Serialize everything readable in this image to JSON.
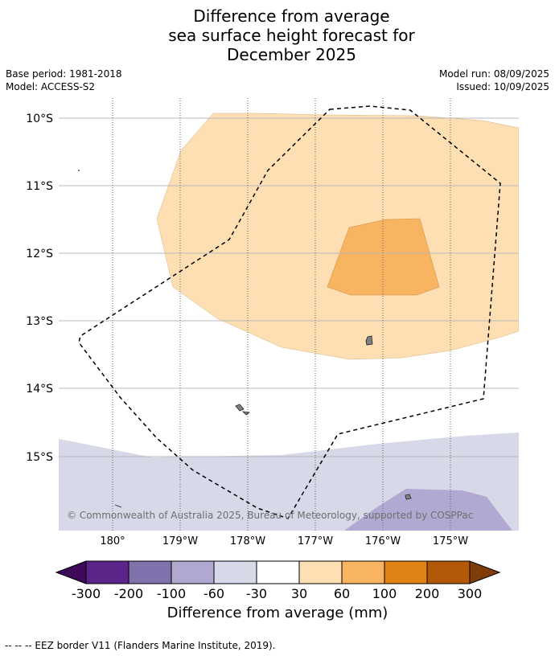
{
  "title": {
    "line1": "Difference from average",
    "line2": "sea surface height forecast for",
    "line3": "December 2025"
  },
  "meta": {
    "base_period": "Base period: 1981-2018",
    "model": "Model: ACCESS-S2",
    "model_run": "Model run: 08/09/2025",
    "issued": "Issued: 10/09/2025"
  },
  "map": {
    "latitude_labels": [
      "10°S",
      "11°S",
      "12°S",
      "13°S",
      "14°S",
      "15°S"
    ],
    "longitude_labels": [
      "180°",
      "179°W",
      "178°W",
      "177°W",
      "176°W",
      "175°W"
    ],
    "copyright": "© Commonwealth of Australia 2025, Bureau of Meteorology, supported by COSPPac",
    "colors": {
      "anomaly_30_60": "#fddfb3",
      "anomaly_60_100": "#f8b461",
      "anomaly_neg60_neg30": "#d7d8e8",
      "anomaly_neg100_neg60": "#b1a9d1",
      "eez_border": "#000000",
      "land": "#808080"
    }
  },
  "colorbar": {
    "tick_labels": [
      "-300",
      "-200",
      "-100",
      "-60",
      "-30",
      "30",
      "60",
      "100",
      "200",
      "300"
    ],
    "bin_colors": [
      "#3f0a59",
      "#5b2489",
      "#8071ad",
      "#b1a9d1",
      "#d7d8e8",
      "#ffffff",
      "#fddfb3",
      "#f8b461",
      "#e08214",
      "#b35806",
      "#7f3b08"
    ],
    "title": "Difference from average (mm)"
  },
  "footer": {
    "legend": "--  --  -- EEZ border V11 (Flanders Marine Institute, 2019)."
  }
}
